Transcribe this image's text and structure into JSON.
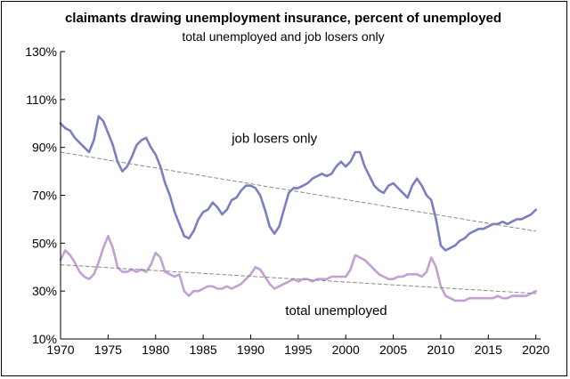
{
  "chart_data": {
    "type": "line",
    "title": "claimants drawing unemployment insurance, percent of unemployed",
    "subtitle": "total unemployed and job losers only",
    "xlabel": "",
    "ylabel": "",
    "xlim": [
      1970,
      2020.5
    ],
    "ylim": [
      10,
      130
    ],
    "x_ticks": [
      "1970",
      "1975",
      "1980",
      "1985",
      "1990",
      "1995",
      "2000",
      "2005",
      "2010",
      "2015",
      "2020"
    ],
    "y_ticks": [
      "10%",
      "30%",
      "50%",
      "70%",
      "90%",
      "110%",
      "130%"
    ],
    "grid": false,
    "series": [
      {
        "name": "job losers only",
        "color": "#7a7fc0",
        "x": [
          1970,
          1970.5,
          1971,
          1971.5,
          1972,
          1972.5,
          1973,
          1973.5,
          1974,
          1974.5,
          1975,
          1975.5,
          1976,
          1976.5,
          1977,
          1977.5,
          1978,
          1978.5,
          1979,
          1979.5,
          1980,
          1980.5,
          1981,
          1981.5,
          1982,
          1982.5,
          1983,
          1983.5,
          1984,
          1984.5,
          1985,
          1985.5,
          1986,
          1986.5,
          1987,
          1987.5,
          1988,
          1988.5,
          1989,
          1989.5,
          1990,
          1990.5,
          1991,
          1991.5,
          1992,
          1992.5,
          1993,
          1993.5,
          1994,
          1994.5,
          1995,
          1995.5,
          1996,
          1996.5,
          1997,
          1997.5,
          1998,
          1998.5,
          1999,
          1999.5,
          2000,
          2000.5,
          2001,
          2001.5,
          2002,
          2002.5,
          2003,
          2003.5,
          2004,
          2004.5,
          2005,
          2005.5,
          2006,
          2006.5,
          2007,
          2007.5,
          2008,
          2008.5,
          2009,
          2009.5,
          2010,
          2010.5,
          2011,
          2011.5,
          2012,
          2012.5,
          2013,
          2013.5,
          2014,
          2014.5,
          2015,
          2015.5,
          2016,
          2016.5,
          2017,
          2017.5,
          2018,
          2018.5,
          2019,
          2019.5,
          2020
        ],
        "values": [
          100,
          98,
          97,
          94,
          92,
          90,
          88,
          93,
          103,
          101,
          96,
          91,
          84,
          80,
          82,
          86,
          91,
          93,
          94,
          90,
          87,
          82,
          75,
          70,
          63,
          58,
          53,
          52,
          55,
          60,
          63,
          64,
          67,
          65,
          62,
          64,
          68,
          69,
          72,
          74,
          74,
          73,
          70,
          64,
          57,
          54,
          57,
          64,
          71,
          73,
          73,
          74,
          75,
          77,
          78,
          79,
          78,
          79,
          82,
          84,
          82,
          84,
          88,
          88,
          82,
          78,
          74,
          72,
          71,
          74,
          75,
          73,
          71,
          69,
          74,
          77,
          74,
          70,
          68,
          60,
          49,
          47,
          48,
          49,
          51,
          52,
          54,
          55,
          56,
          56,
          57,
          58,
          58,
          59,
          58,
          59,
          60,
          60,
          61,
          62,
          64
        ]
      },
      {
        "name": "total unemployed",
        "color": "#c49fd4",
        "x": [
          1970,
          1970.5,
          1971,
          1971.5,
          1972,
          1972.5,
          1973,
          1973.5,
          1974,
          1974.5,
          1975,
          1975.5,
          1976,
          1976.5,
          1977,
          1977.5,
          1978,
          1978.5,
          1979,
          1979.5,
          1980,
          1980.5,
          1981,
          1981.5,
          1982,
          1982.5,
          1983,
          1983.5,
          1984,
          1984.5,
          1985,
          1985.5,
          1986,
          1986.5,
          1987,
          1987.5,
          1988,
          1988.5,
          1989,
          1989.5,
          1990,
          1990.5,
          1991,
          1991.5,
          1992,
          1992.5,
          1993,
          1993.5,
          1994,
          1994.5,
          1995,
          1995.5,
          1996,
          1996.5,
          1997,
          1997.5,
          1998,
          1998.5,
          1999,
          1999.5,
          2000,
          2000.5,
          2001,
          2001.5,
          2002,
          2002.5,
          2003,
          2003.5,
          2004,
          2004.5,
          2005,
          2005.5,
          2006,
          2006.5,
          2007,
          2007.5,
          2008,
          2008.5,
          2009,
          2009.5,
          2010,
          2010.5,
          2011,
          2011.5,
          2012,
          2012.5,
          2013,
          2013.5,
          2014,
          2014.5,
          2015,
          2015.5,
          2016,
          2016.5,
          2017,
          2017.5,
          2018,
          2018.5,
          2019,
          2019.5,
          2020
        ],
        "values": [
          43,
          47,
          45,
          42,
          38,
          36,
          35,
          37,
          42,
          48,
          53,
          48,
          40,
          38,
          38,
          39,
          38,
          39,
          38,
          41,
          46,
          44,
          38,
          37,
          36,
          37,
          30,
          28,
          30,
          30,
          31,
          32,
          32,
          31,
          31,
          32,
          31,
          32,
          33,
          35,
          37,
          40,
          39,
          36,
          33,
          31,
          32,
          33,
          34,
          35,
          34,
          35,
          35,
          34,
          35,
          35,
          35,
          36,
          36,
          36,
          36,
          39,
          45,
          44,
          43,
          41,
          39,
          37,
          36,
          35,
          35,
          36,
          36,
          37,
          37,
          37,
          36,
          38,
          44,
          40,
          32,
          28,
          27,
          26,
          26,
          26,
          27,
          27,
          27,
          27,
          27,
          27,
          28,
          27,
          27,
          28,
          28,
          28,
          28,
          29,
          30
        ]
      },
      {
        "name": "trend-job-losers",
        "style": "dashed",
        "color": "#8a8a8a",
        "x": [
          1970,
          2020
        ],
        "values": [
          88,
          55
        ]
      },
      {
        "name": "trend-total",
        "style": "dashed",
        "color": "#8a8a8a",
        "x": [
          1970,
          2020
        ],
        "values": [
          41,
          29
        ]
      }
    ],
    "annotations": [
      {
        "text": "job losers only",
        "x": 1992.5,
        "y": 92
      },
      {
        "text": "total unemployed",
        "x": 1999,
        "y": 20
      }
    ]
  }
}
